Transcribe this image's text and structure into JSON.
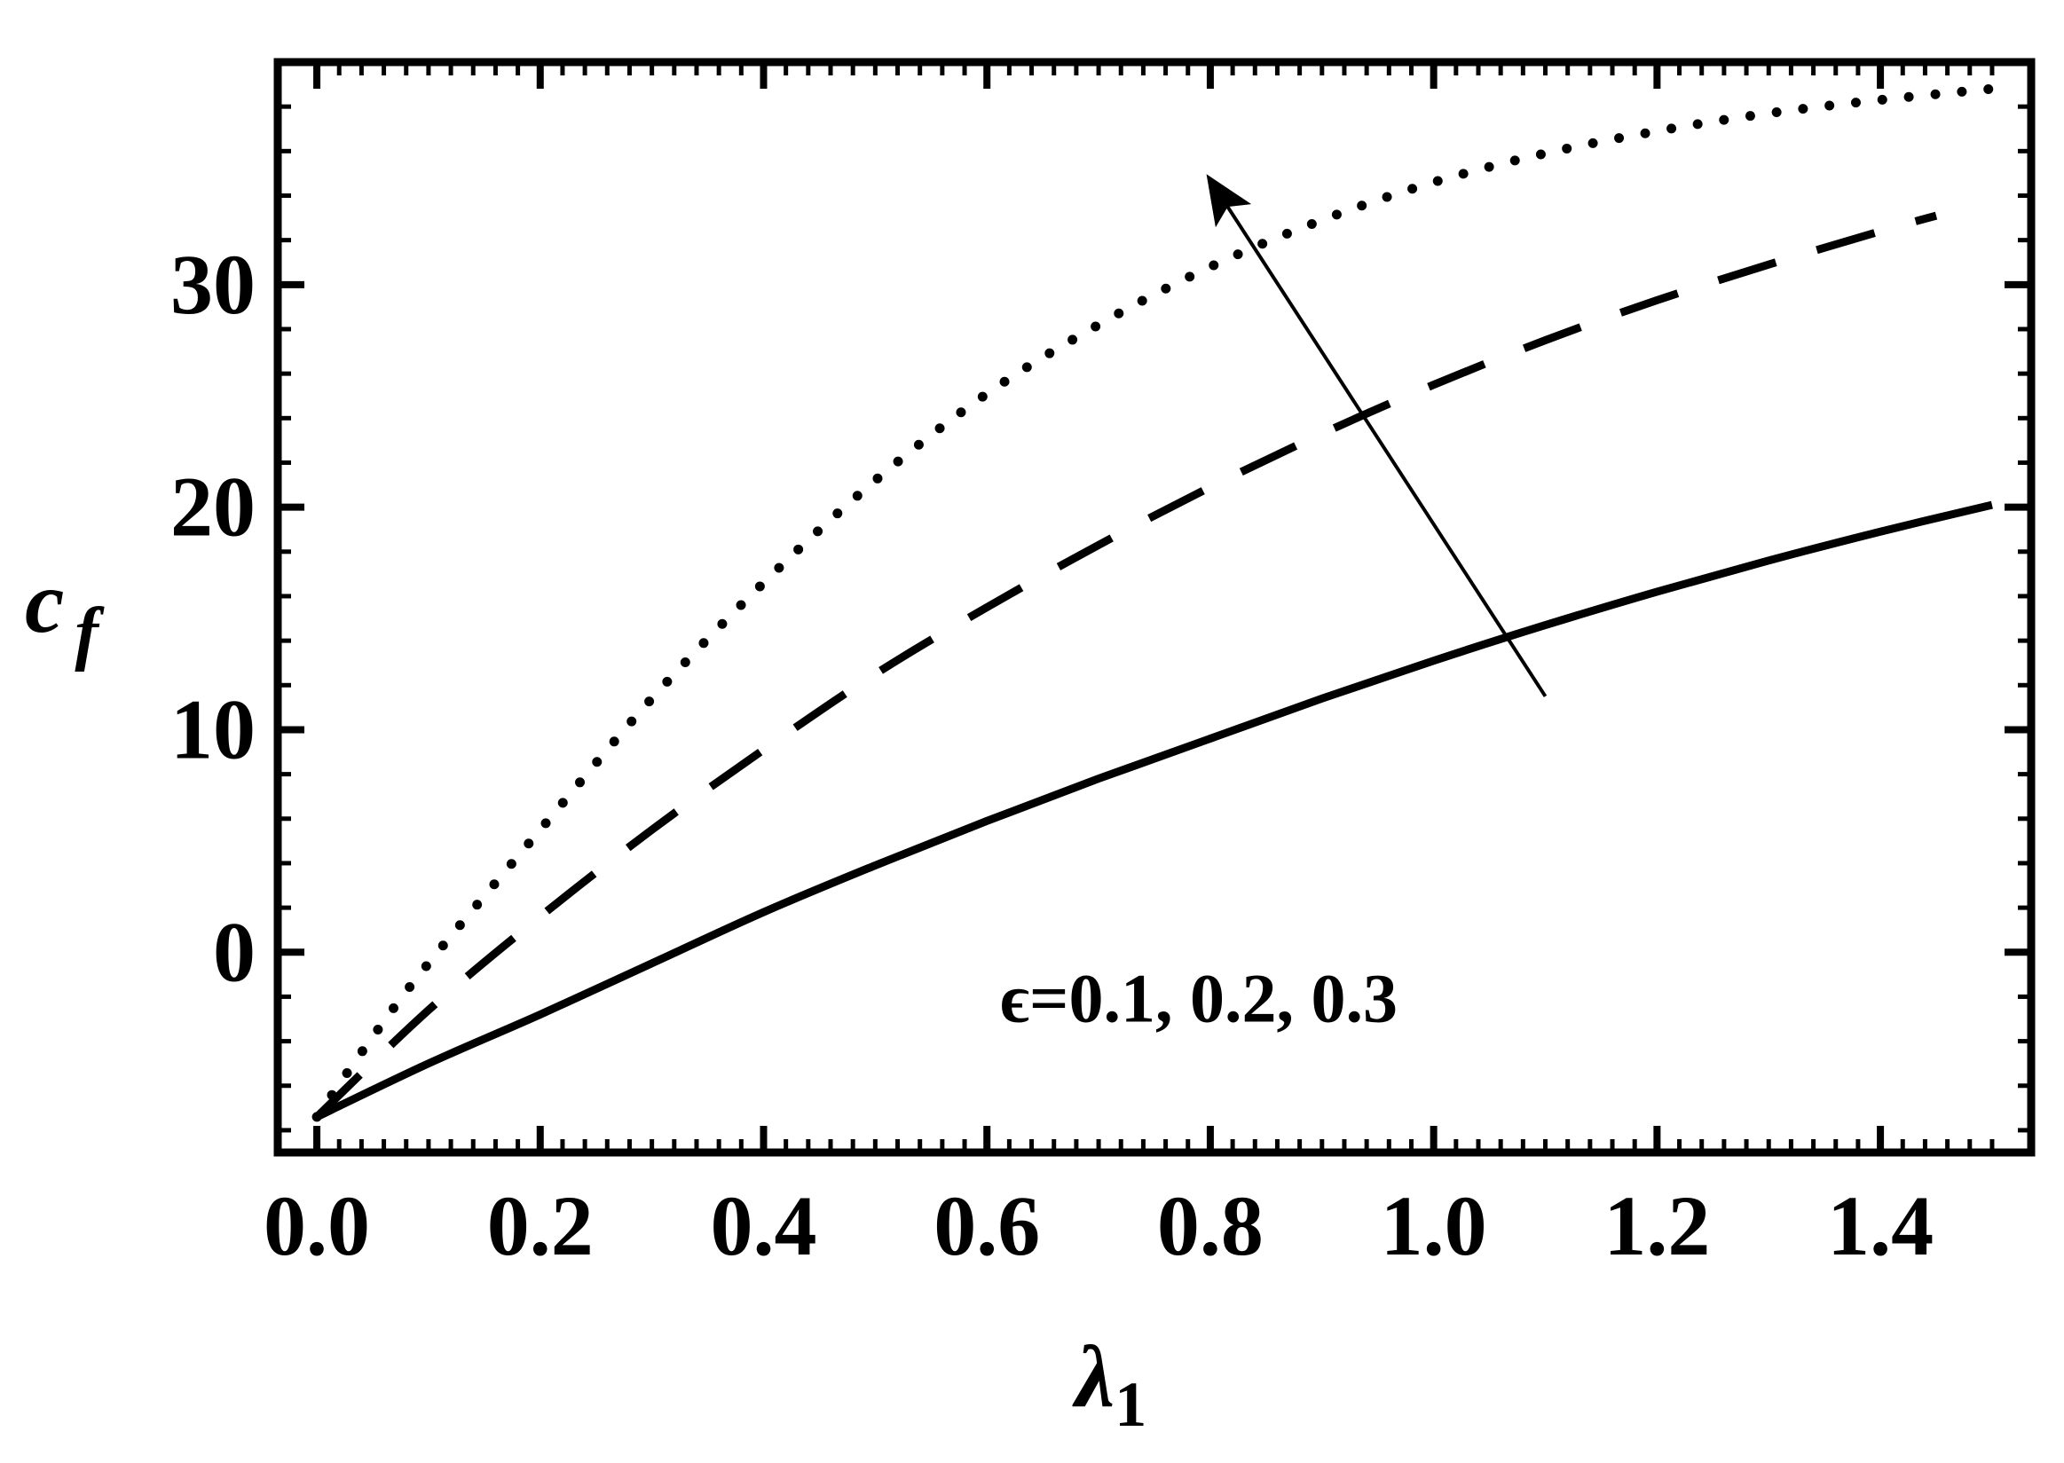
{
  "chart_data": {
    "type": "line",
    "title": "",
    "xlabel": "λ",
    "xlabel_sub": "1",
    "ylabel": "c",
    "ylabel_sub": "f",
    "xlim": [
      -0.035,
      1.535
    ],
    "ylim": [
      -9.0,
      40.0
    ],
    "xticks": [
      0.0,
      0.2,
      0.4,
      0.6,
      0.8,
      1.0,
      1.2,
      1.4
    ],
    "xtick_labels": [
      "0.0",
      "0.2",
      "0.4",
      "0.6",
      "0.8",
      "1.0",
      "1.2",
      "1.4"
    ],
    "yticks": [
      0,
      10,
      20,
      30
    ],
    "ytick_labels": [
      "0",
      "10",
      "20",
      "30"
    ],
    "grid": false,
    "series": [
      {
        "style": "solid",
        "x": [
          0.0,
          0.1,
          0.2,
          0.3,
          0.4,
          0.5,
          0.6,
          0.7,
          0.8,
          0.9,
          1.0,
          1.1,
          1.2,
          1.3,
          1.4,
          1.5
        ],
        "y": [
          -7.4,
          -5.0,
          -2.8,
          -0.5,
          1.8,
          3.9,
          5.9,
          7.8,
          9.6,
          11.4,
          13.1,
          14.7,
          16.2,
          17.6,
          18.9,
          20.1
        ]
      },
      {
        "style": "dashed",
        "x": [
          0.0,
          0.1,
          0.2,
          0.3,
          0.4,
          0.5,
          0.6,
          0.7,
          0.8,
          0.9,
          1.0,
          1.1,
          1.2,
          1.3,
          1.4,
          1.45
        ],
        "y": [
          -7.4,
          -2.6,
          1.6,
          5.5,
          9.1,
          12.5,
          15.5,
          18.3,
          20.9,
          23.3,
          25.5,
          27.5,
          29.3,
          30.9,
          32.4,
          33.1
        ]
      },
      {
        "style": "dotted",
        "x": [
          0.0,
          0.05,
          0.1,
          0.2,
          0.3,
          0.4,
          0.5,
          0.6,
          0.7,
          0.8,
          0.9,
          1.0,
          1.1,
          1.2,
          1.3,
          1.4,
          1.5
        ],
        "y": [
          -7.4,
          -3.8,
          -0.5,
          5.5,
          11.4,
          16.6,
          21.2,
          25.1,
          28.2,
          30.8,
          32.9,
          34.6,
          35.9,
          36.9,
          37.7,
          38.3,
          38.8
        ]
      }
    ],
    "arrow": {
      "from": [
        1.1,
        11.5
      ],
      "to": [
        0.8,
        34.7
      ]
    },
    "annotation": {
      "text": "ϵ=0.1, 0.2, 0.3",
      "x": 0.6,
      "y": -2
    }
  }
}
